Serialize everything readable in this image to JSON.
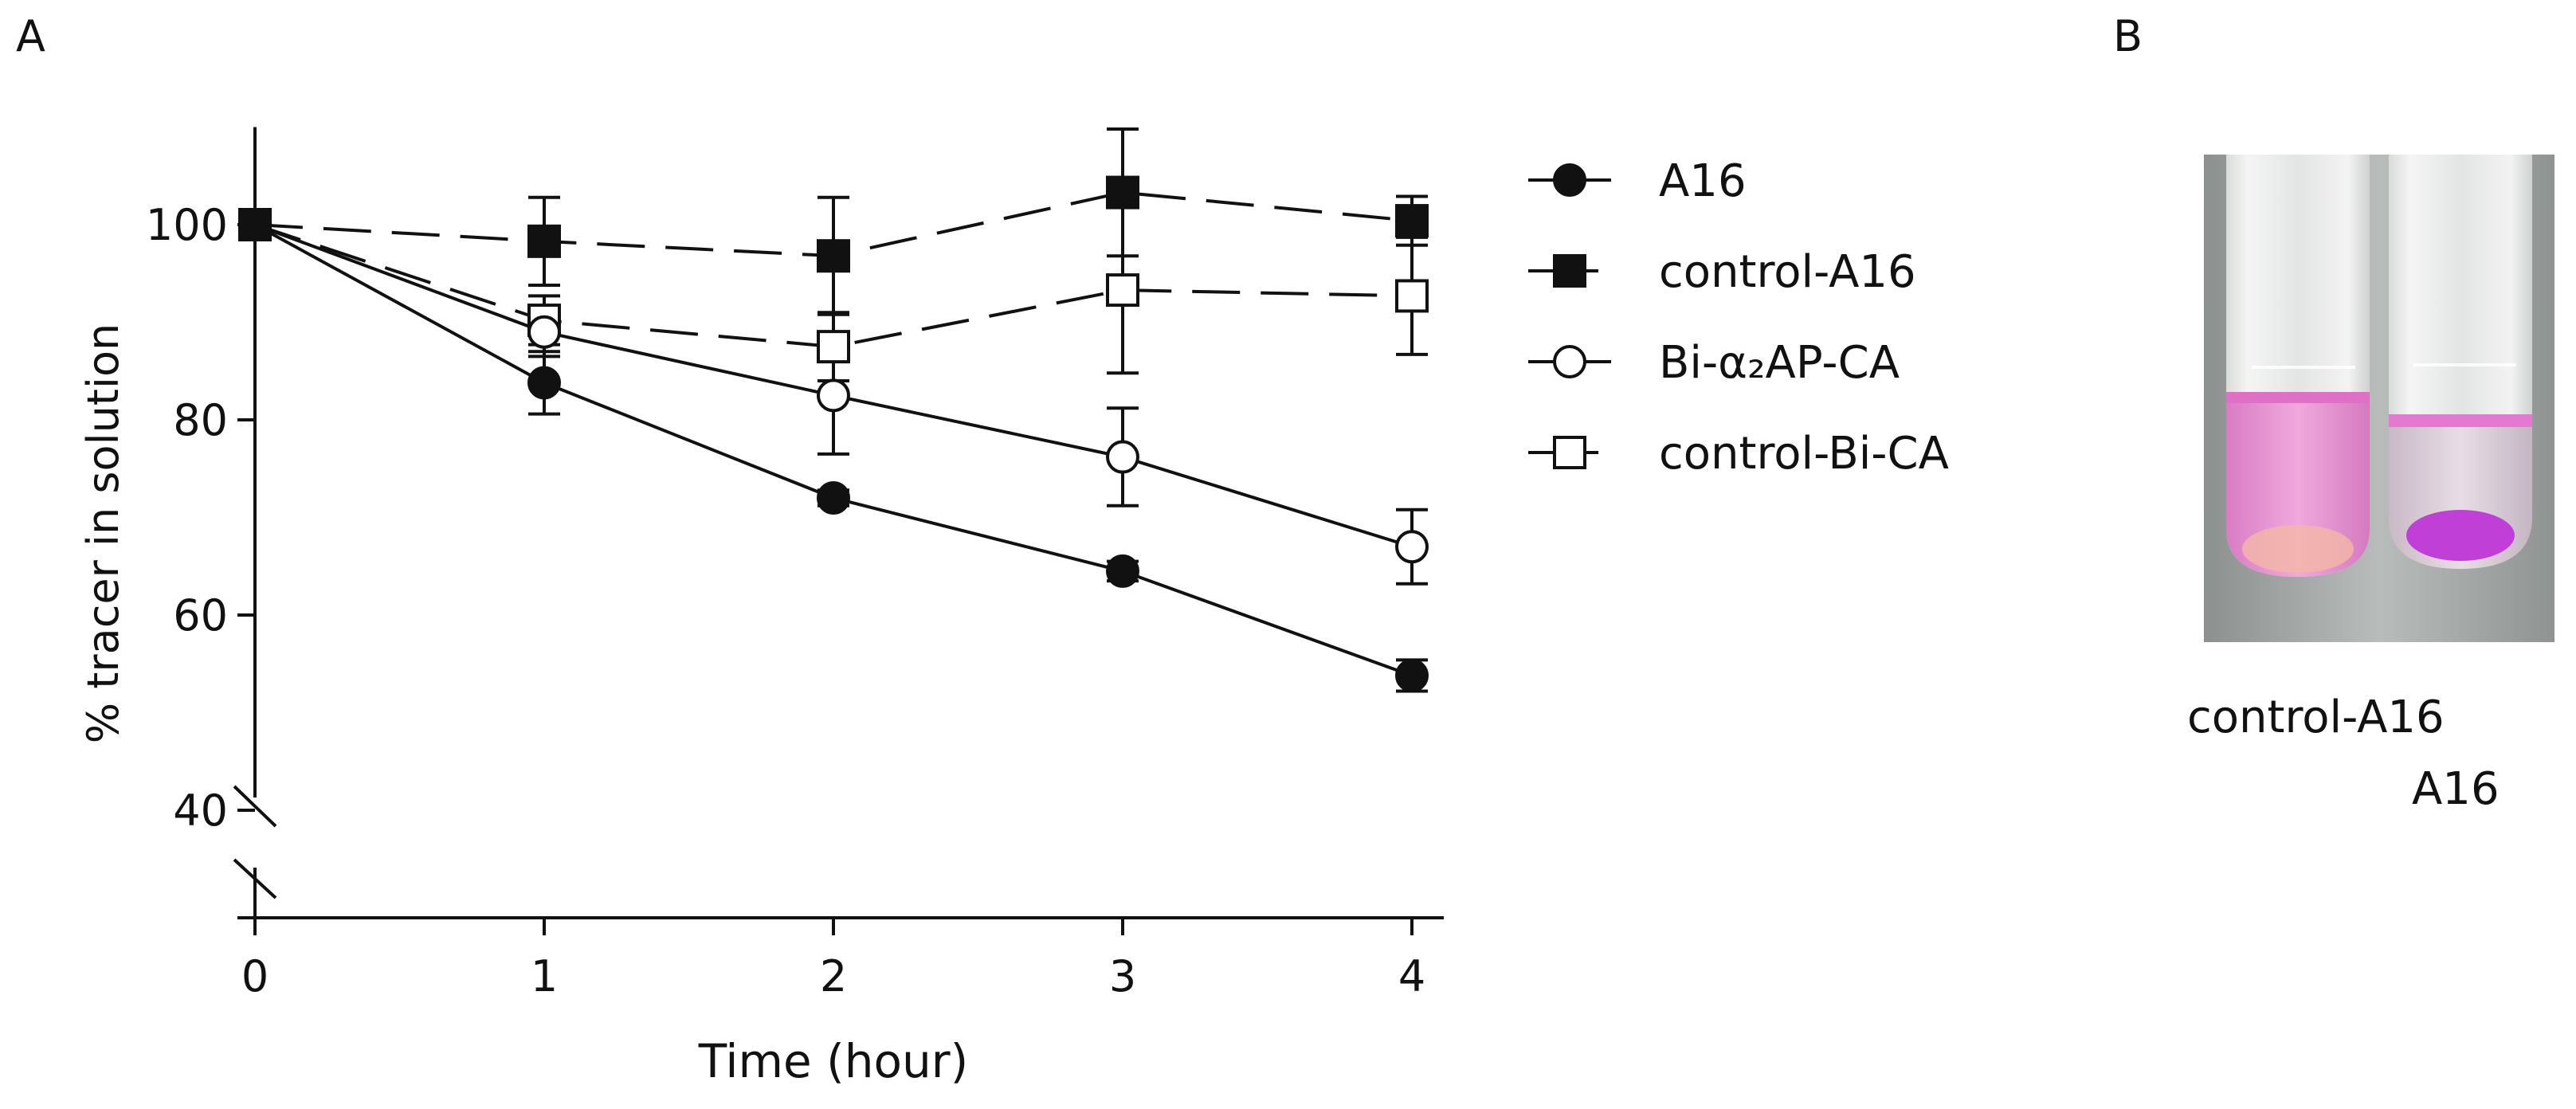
{
  "panels": {
    "a_label": "A",
    "b_label": "B"
  },
  "chart_data": {
    "type": "line",
    "title": "",
    "xlabel": "Time (hour)",
    "ylabel": "% tracer in solution",
    "x": [
      0,
      1,
      2,
      3,
      4
    ],
    "xlim": [
      0,
      4
    ],
    "ylim": [
      40,
      110
    ],
    "y_axis_break_below": 40,
    "xticks": [
      "0",
      "1",
      "2",
      "3",
      "4"
    ],
    "yticks": [
      "100",
      "80",
      "60",
      "40"
    ],
    "ytick_values": [
      100,
      80,
      60,
      40
    ],
    "grid": false,
    "legend_position": "right",
    "series": [
      {
        "name": "A16",
        "marker": "circle-filled",
        "line": "solid",
        "values": [
          100,
          83.8,
          72.0,
          64.5,
          53.8
        ],
        "errors": [
          0,
          3.2,
          0.8,
          1.0,
          1.6
        ]
      },
      {
        "name": "control-A16",
        "marker": "square-filled",
        "line": "dashed",
        "values": [
          100,
          98.3,
          96.8,
          103.3,
          100.4
        ],
        "errors": [
          0,
          4.5,
          6.0,
          6.5,
          2.5
        ]
      },
      {
        "name": "Bi-α₂AP-CA",
        "marker": "circle-open",
        "line": "solid",
        "values": [
          100,
          89.0,
          82.5,
          76.2,
          67.0
        ],
        "errors": [
          0,
          2.5,
          6.0,
          5.0,
          3.8
        ]
      },
      {
        "name": "control-Bi-CA",
        "marker": "square-open",
        "line": "dashed",
        "values": [
          100,
          90.2,
          87.5,
          93.3,
          92.7
        ],
        "errors": [
          0,
          2.5,
          3.5,
          8.5,
          6.0
        ]
      }
    ]
  },
  "panel_b": {
    "image_description_icon": "test-tubes-photo",
    "tube_labels": [
      "control-A16",
      "A16"
    ],
    "colors": {
      "tube_control": "#e98ad0",
      "tube_a16": "#c64bd8",
      "photo_bg": "#9ea3a1"
    }
  }
}
